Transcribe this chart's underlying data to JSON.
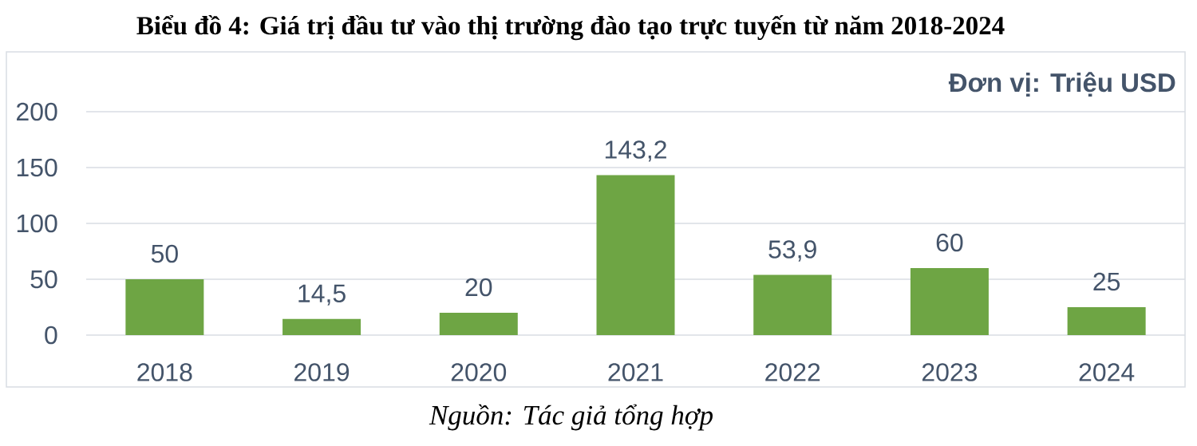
{
  "chart_data": {
    "type": "bar",
    "title": "Biểu đồ 4: Giá trị đầu tư vào thị trường đào tạo trực tuyến từ năm 2018-2024",
    "categories": [
      "2018",
      "2019",
      "2020",
      "2021",
      "2022",
      "2023",
      "2024"
    ],
    "values": [
      50,
      14.5,
      20,
      143.2,
      53.9,
      60,
      25
    ],
    "value_labels": [
      "50",
      "14,5",
      "20",
      "143,2",
      "53,9",
      "60",
      "25"
    ],
    "color": "#6ea544",
    "ylim": [
      0,
      200
    ],
    "yticks": [
      0,
      50,
      100,
      150,
      200
    ],
    "grid": "y",
    "annotations": [
      "Đơn vị: Triệu USD",
      "Nguồn: Tác giả tổng hợp"
    ]
  }
}
